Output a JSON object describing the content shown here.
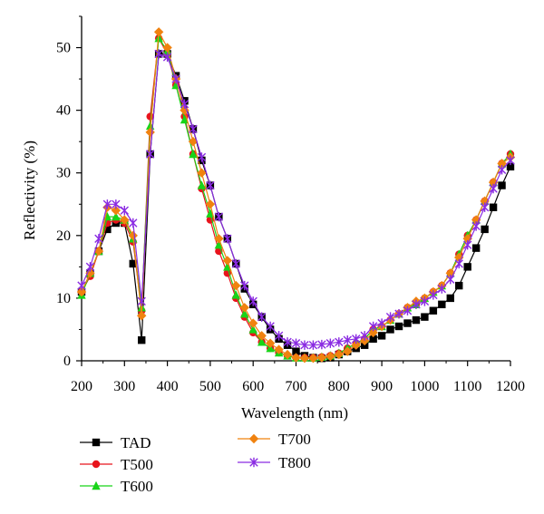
{
  "chart_data": {
    "type": "line",
    "xlabel": "Wavelength (nm)",
    "ylabel": "Reflectivity (%)",
    "xlim": [
      200,
      1200
    ],
    "ylim": [
      0,
      55
    ],
    "xticks": [
      200,
      300,
      400,
      500,
      600,
      700,
      800,
      900,
      1000,
      1100,
      1200
    ],
    "yticks": [
      0,
      10,
      20,
      30,
      40,
      50
    ],
    "grid": false,
    "legend_placement": "bottom-left, below plot",
    "x": [
      200,
      220,
      240,
      260,
      280,
      300,
      320,
      340,
      360,
      380,
      400,
      420,
      440,
      460,
      480,
      500,
      520,
      540,
      560,
      580,
      600,
      620,
      640,
      660,
      680,
      700,
      720,
      740,
      760,
      780,
      800,
      820,
      840,
      860,
      880,
      900,
      920,
      940,
      960,
      980,
      1000,
      1020,
      1040,
      1060,
      1080,
      1100,
      1120,
      1140,
      1160,
      1180,
      1200
    ],
    "series": [
      {
        "name": "TAD",
        "color": "#000000",
        "marker": "square",
        "values": [
          11,
          14,
          17.5,
          21,
          22,
          22,
          15.5,
          3.3,
          33,
          49,
          49,
          45.5,
          41.5,
          37,
          32,
          28,
          23,
          19.5,
          15.5,
          11.5,
          9,
          7,
          5,
          3.5,
          2.5,
          1.5,
          0.8,
          0.5,
          0.4,
          0.5,
          1,
          1.5,
          2,
          2.5,
          3.5,
          4,
          5,
          5.5,
          6,
          6.5,
          7,
          8,
          9,
          10,
          12,
          15,
          18,
          21,
          24.5,
          28,
          31
        ]
      },
      {
        "name": "T500",
        "color": "#e8141c",
        "marker": "circle",
        "values": [
          11,
          13.5,
          17.5,
          22,
          22.5,
          22,
          19,
          8,
          39,
          51.5,
          49,
          44,
          39,
          33,
          27.5,
          22.5,
          17.5,
          14,
          10,
          7,
          4.5,
          3,
          2,
          1.3,
          0.8,
          0.5,
          0.5,
          0.5,
          0.6,
          0.8,
          1.2,
          2,
          2.8,
          3.5,
          5,
          5.5,
          6.5,
          7.5,
          8.5,
          9,
          10,
          11,
          12,
          14,
          17,
          20,
          22.5,
          25.5,
          28.5,
          31.5,
          33
        ]
      },
      {
        "name": "T600",
        "color": "#18d418",
        "marker": "triangle",
        "values": [
          10.5,
          14,
          17.5,
          23,
          23,
          22.5,
          19.5,
          8.5,
          37.5,
          51.5,
          49.5,
          44,
          38.5,
          33,
          28,
          23.5,
          18.5,
          15,
          10.5,
          7.5,
          5,
          3,
          2,
          1.3,
          0.8,
          0.5,
          0.5,
          0.5,
          0.6,
          0.8,
          1.2,
          2,
          2.8,
          3.5,
          5,
          5.5,
          6.5,
          7.5,
          8.5,
          9,
          10,
          11,
          12,
          14,
          17,
          20,
          22.5,
          25.5,
          28.5,
          31.5,
          33
        ]
      },
      {
        "name": "T700",
        "color": "#f0820f",
        "marker": "diamond",
        "values": [
          11,
          14,
          17.5,
          24.5,
          24,
          22.5,
          20,
          7.2,
          36.5,
          52.5,
          50,
          45,
          40,
          35,
          30,
          25,
          19.5,
          16,
          12,
          8.5,
          6,
          4,
          2.8,
          1.8,
          1,
          0.5,
          0.4,
          0.4,
          0.5,
          0.7,
          1,
          1.5,
          2.5,
          3.2,
          4.5,
          5.5,
          6.5,
          7.5,
          8.5,
          9.5,
          10,
          11,
          12,
          14,
          16.5,
          19.5,
          22.5,
          25.5,
          28.5,
          31.5,
          32.5
        ]
      },
      {
        "name": "T800",
        "color": "#8a2be2",
        "marker": "star",
        "values": [
          12,
          15,
          19.5,
          25,
          25,
          24,
          22,
          9.5,
          33,
          49,
          48.5,
          45,
          41,
          37,
          32.5,
          28,
          23,
          19.5,
          15.5,
          12,
          9.5,
          7,
          5.5,
          4,
          3,
          2.8,
          2.5,
          2.5,
          2.6,
          2.8,
          3,
          3.3,
          3.5,
          4,
          5.5,
          6,
          7,
          7.5,
          8,
          9,
          9.5,
          10.5,
          11.5,
          13,
          15.5,
          18.5,
          21.5,
          24.5,
          27.5,
          30.5,
          32
        ]
      }
    ]
  }
}
